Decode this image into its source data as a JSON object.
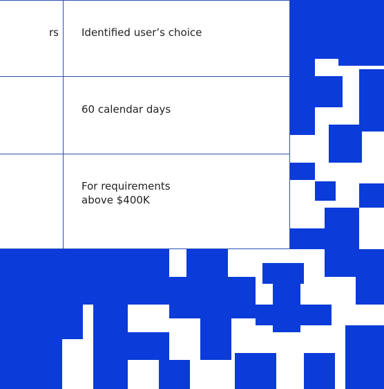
{
  "table": {
    "rows": [
      {
        "left": "rs",
        "right": "Identified user’s choice"
      },
      {
        "right": "60 calendar days"
      },
      {
        "right": "For requirements above $400K"
      }
    ]
  }
}
